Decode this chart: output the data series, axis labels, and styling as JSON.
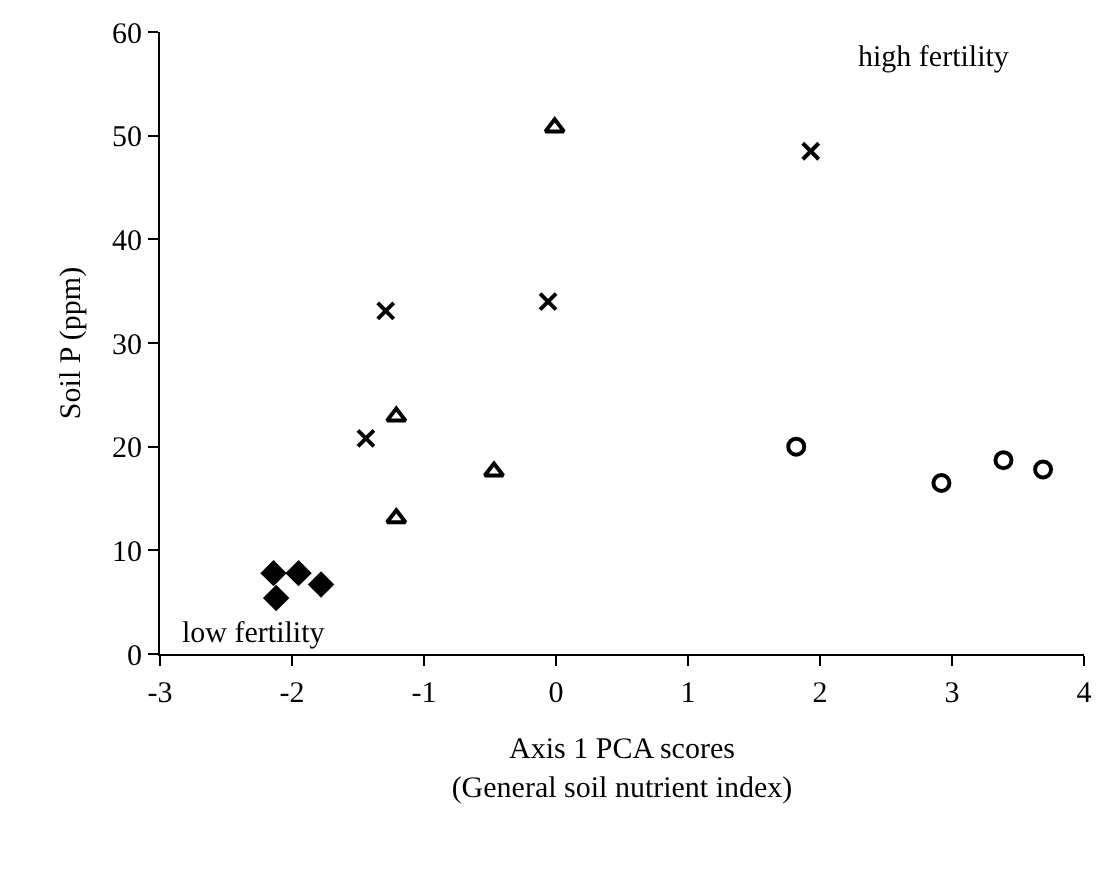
{
  "chart_data": {
    "type": "scatter",
    "xlabel": "Axis 1 PCA scores\n(General soil nutrient index)",
    "ylabel": "Soil P (ppm)",
    "xlim": [
      -3,
      4
    ],
    "xticks": [
      -3,
      -2,
      -1,
      0,
      1,
      2,
      3,
      4
    ],
    "ylim": [
      0,
      60
    ],
    "yticks": [
      0,
      10,
      20,
      30,
      40,
      50,
      60
    ],
    "series": [
      {
        "color": "#000000",
        "marker": "diamond",
        "x": [
          -2.14,
          -1.95,
          -1.78,
          -2.12
        ],
        "values": [
          7.8,
          7.8,
          6.7,
          5.4
        ]
      },
      {
        "color": "#000000",
        "marker": "triangle",
        "x": [
          -0.01,
          -1.21,
          -0.47,
          -1.21
        ],
        "values": [
          50.8,
          22.9,
          17.6,
          13.1
        ]
      },
      {
        "color": "#000000",
        "marker": "cross",
        "x": [
          1.93,
          -1.29,
          -0.06,
          -1.44
        ],
        "values": [
          48.5,
          33.1,
          34.0,
          20.8
        ]
      },
      {
        "color": "#000000",
        "marker": "circle",
        "x": [
          1.82,
          2.92,
          3.39,
          3.69
        ],
        "values": [
          20.0,
          16.5,
          18.7,
          17.8
        ]
      }
    ],
    "annotations": [
      "high fertility",
      "low fertility"
    ]
  }
}
